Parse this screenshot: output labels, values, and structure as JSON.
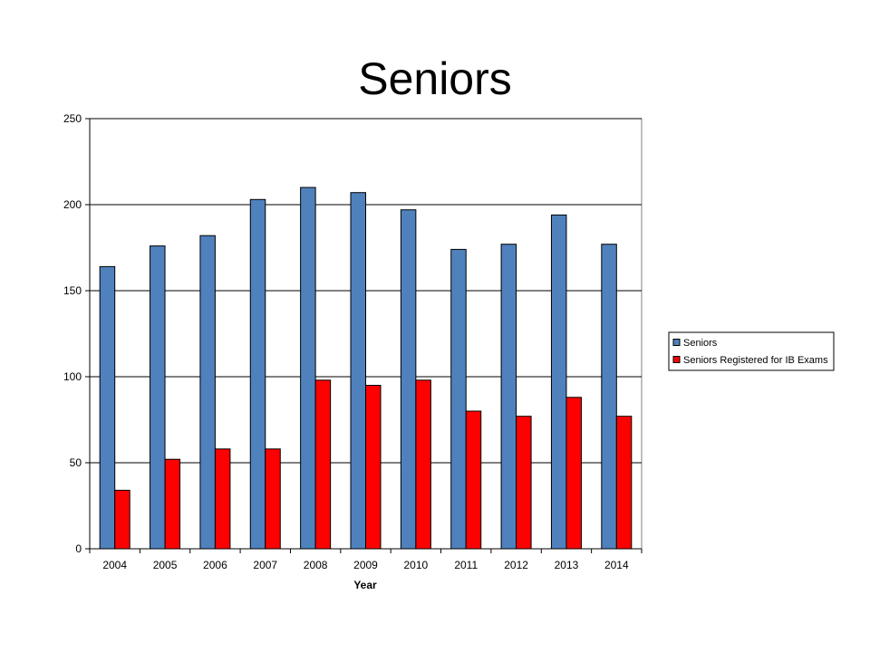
{
  "slide": {
    "title": "Seniors"
  },
  "chart_data": {
    "type": "bar",
    "categories": [
      "2004",
      "2005",
      "2006",
      "2007",
      "2008",
      "2009",
      "2010",
      "2011",
      "2012",
      "2013",
      "2014"
    ],
    "series": [
      {
        "name": "Seniors",
        "color": "#4f81bd",
        "values": [
          164,
          176,
          182,
          203,
          210,
          207,
          197,
          174,
          177,
          194,
          177
        ]
      },
      {
        "name": "Seniors Registered for IB Exams",
        "color": "#ff0000",
        "values": [
          34,
          52,
          58,
          58,
          98,
          95,
          98,
          80,
          77,
          88,
          77
        ]
      }
    ],
    "xlabel": "Year",
    "ylabel": "",
    "ylim": [
      0,
      250
    ],
    "yticks": [
      0,
      50,
      100,
      150,
      200,
      250
    ],
    "grid": true,
    "legend_position": "right"
  }
}
